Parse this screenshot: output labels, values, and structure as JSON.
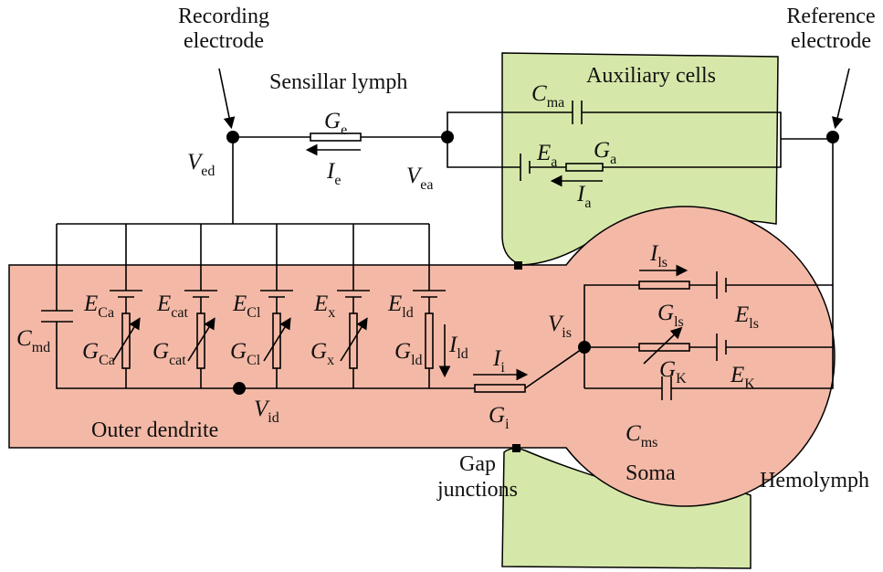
{
  "texts": {
    "recording_electrode": [
      "Recording",
      "electrode"
    ],
    "reference_electrode": [
      "Reference",
      "electrode"
    ],
    "sensillar_lymph": "Sensillar lymph",
    "auxiliary_cells": "Auxiliary cells",
    "outer_dendrite": "Outer dendrite",
    "gap_junctions": [
      "Gap",
      "junctions"
    ],
    "soma": "Soma",
    "hemolymph": "Hemolymph"
  },
  "symbols": [
    {
      "base": "G",
      "sub": "e"
    },
    {
      "base": "I",
      "sub": "e"
    },
    {
      "base": "V",
      "sub": "ed"
    },
    {
      "base": "V",
      "sub": "ea"
    },
    {
      "base": "C",
      "sub": "ma"
    },
    {
      "base": "E",
      "sub": "a"
    },
    {
      "base": "G",
      "sub": "a"
    },
    {
      "base": "I",
      "sub": "a"
    },
    {
      "base": "C",
      "sub": "md"
    },
    {
      "base": "E",
      "sub": "Ca"
    },
    {
      "base": "E",
      "sub": "cat"
    },
    {
      "base": "E",
      "sub": "Cl"
    },
    {
      "base": "E",
      "sub": "x"
    },
    {
      "base": "E",
      "sub": "ld"
    },
    {
      "base": "G",
      "sub": "Ca"
    },
    {
      "base": "G",
      "sub": "cat"
    },
    {
      "base": "G",
      "sub": "Cl"
    },
    {
      "base": "G",
      "sub": "x"
    },
    {
      "base": "G",
      "sub": "ld"
    },
    {
      "base": "I",
      "sub": "ld"
    },
    {
      "base": "V",
      "sub": "id"
    },
    {
      "base": "I",
      "sub": "i"
    },
    {
      "base": "G",
      "sub": "i"
    },
    {
      "base": "V",
      "sub": "is"
    },
    {
      "base": "I",
      "sub": "ls"
    },
    {
      "base": "G",
      "sub": "ls"
    },
    {
      "base": "E",
      "sub": "ls"
    },
    {
      "base": "G",
      "sub": "K"
    },
    {
      "base": "E",
      "sub": "K"
    },
    {
      "base": "C",
      "sub": "ms"
    }
  ]
}
